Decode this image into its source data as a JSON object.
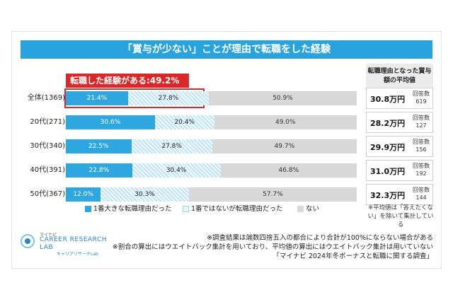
{
  "title": "「賞与が少ない」ことが理由で転職をした経験",
  "callout": "転職した経験がある:49.2%",
  "right_header": "転職理由となった賞与額の平均値",
  "count_label": "回答数",
  "colors": {
    "s1": "#2ea7e0",
    "s2": "#eaf6fb",
    "s3": "#d8d8d8",
    "accent": "#29a3dd",
    "red": "#d9282a"
  },
  "chart_data": {
    "type": "bar",
    "stacked": true,
    "orientation": "horizontal",
    "categories": [
      "全体(1369)",
      "20代(271)",
      "30代(340)",
      "40代(391)",
      "50代(367)"
    ],
    "series": [
      {
        "name": "1番大きな転職理由だった",
        "values": [
          21.4,
          30.6,
          22.5,
          22.8,
          12.0
        ],
        "labels": [
          "21.4%",
          "30.6%",
          "22.5%",
          "22.8%",
          "12.0%"
        ]
      },
      {
        "name": "1番ではないが転職理由だった",
        "values": [
          27.8,
          20.4,
          27.8,
          30.4,
          30.3
        ],
        "labels": [
          "27.8%",
          "20.4%",
          "27.8%",
          "30.4%",
          "30.3%"
        ]
      },
      {
        "name": "ない",
        "values": [
          50.9,
          49.0,
          49.7,
          46.8,
          57.7
        ],
        "labels": [
          "50.9%",
          "49.0%",
          "49.7%",
          "46.8%",
          "57.7%"
        ]
      }
    ],
    "bonus_amounts": [
      "30.8万円",
      "28.2万円",
      "29.9万円",
      "31.0万円",
      "32.3万円"
    ],
    "response_counts": [
      "619",
      "127",
      "156",
      "192",
      "144"
    ],
    "legend_position": "bottom"
  },
  "legend": [
    "1番大きな転職理由だった",
    "1番ではないが転職理由だった",
    "ない"
  ],
  "note_right": "※平均値は「答えたくない」を除いて集計している",
  "footnotes": [
    "※調査結果は端数四捨五入の都合により合計が100%にならない場合がある",
    "※割合の算出にはウエイトバック集計を用いており、平均値の算出にはウエイトバック集計は用いていない",
    "「マイナビ 2024年冬ボーナスと転職に関する調査」"
  ],
  "logo": {
    "small": "マイナビ",
    "line1": "CAREER RESEARCH",
    "line2": "LAB",
    "sub": "キャリアリサーチLab"
  }
}
